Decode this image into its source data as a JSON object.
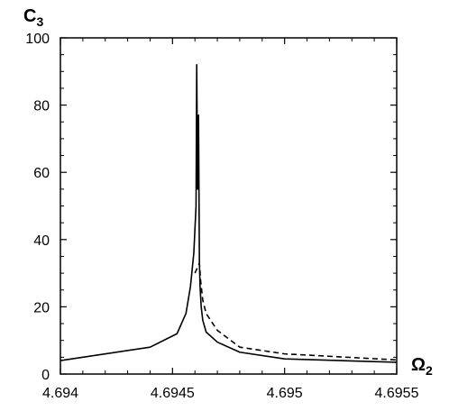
{
  "chart_data": {
    "type": "line",
    "title": "",
    "xlabel": {
      "symbol": "Ω",
      "subscript": "2"
    },
    "ylabel": {
      "symbol": "C",
      "subscript": "3"
    },
    "xlim": [
      4.694,
      4.6955
    ],
    "ylim": [
      0,
      100
    ],
    "xticks": [
      4.694,
      4.6945,
      4.695,
      4.6955
    ],
    "xtick_labels": [
      "4.694",
      "4.6945",
      "4.695",
      "4.6955"
    ],
    "yticks": [
      0,
      20,
      40,
      60,
      80,
      100
    ],
    "ytick_labels": [
      "0",
      "20",
      "40",
      "60",
      "80",
      "100"
    ],
    "grid": false,
    "legend": "none",
    "colors": {
      "line": "#000000",
      "axis": "#000000",
      "background": "#ffffff"
    },
    "series": [
      {
        "style": "solid",
        "x": [
          4.694,
          4.6944,
          4.69452,
          4.69456,
          4.69458,
          4.694595,
          4.694605,
          4.694608,
          4.694612,
          4.694616,
          4.694618,
          4.69462,
          4.694623,
          4.694628,
          4.694635,
          4.69465,
          4.6947,
          4.6948,
          4.695,
          4.6955
        ],
        "y": [
          4,
          8,
          12,
          18,
          26,
          36,
          50,
          92,
          55,
          77,
          55,
          33,
          26,
          20,
          16,
          12.5,
          9.5,
          6.5,
          4.5,
          3.5
        ]
      },
      {
        "style": "dashed",
        "x": [
          4.6946,
          4.69462,
          4.694625,
          4.694635,
          4.69465,
          4.6947,
          4.6948,
          4.695,
          4.6955
        ],
        "y": [
          30,
          33,
          28,
          22,
          18,
          13,
          8,
          6,
          4.2
        ]
      }
    ]
  }
}
